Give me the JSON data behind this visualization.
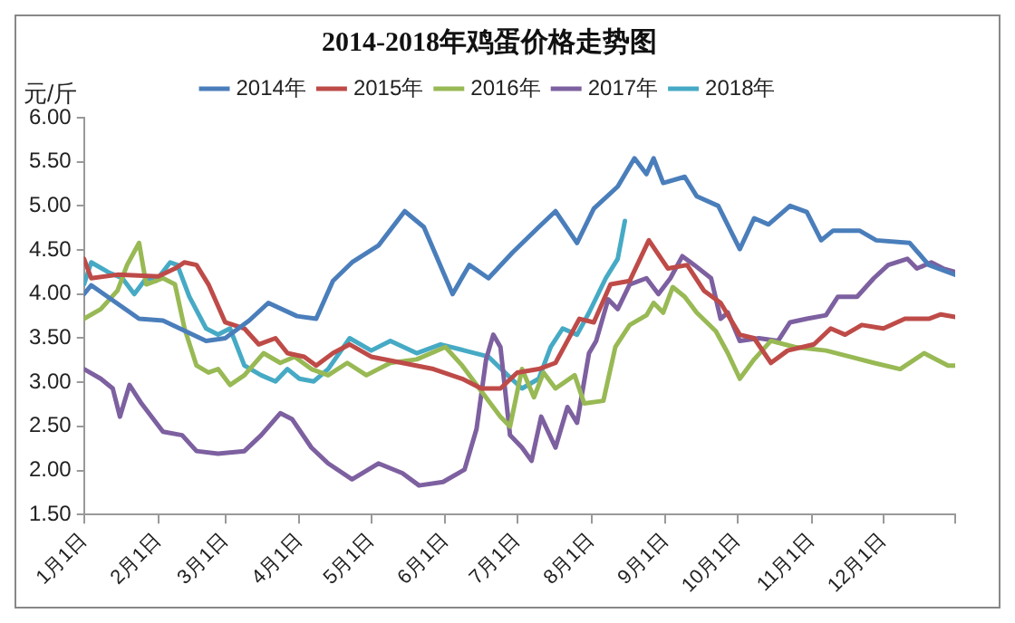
{
  "chart_data": {
    "type": "line",
    "title": "2014-2018年鸡蛋价格走势图",
    "ylabel": "元/斤",
    "xlim": [
      "--01-01",
      "--12-31"
    ],
    "xticks": [
      {
        "value": "--01-01",
        "label": "1月1日"
      },
      {
        "value": "--02-01",
        "label": "2月1日"
      },
      {
        "value": "--03-01",
        "label": "3月1日"
      },
      {
        "value": "--04-01",
        "label": "4月1日"
      },
      {
        "value": "--05-01",
        "label": "5月1日"
      },
      {
        "value": "--06-01",
        "label": "6月1日"
      },
      {
        "value": "--07-01",
        "label": "7月1日"
      },
      {
        "value": "--08-01",
        "label": "8月1日"
      },
      {
        "value": "--09-01",
        "label": "9月1日"
      },
      {
        "value": "--10-01",
        "label": "10月1日"
      },
      {
        "value": "--11-01",
        "label": "11月1日"
      },
      {
        "value": "--12-01",
        "label": "12月1日"
      },
      {
        "value": "--12-31",
        "label": null
      }
    ],
    "ylim": [
      1.5,
      6
    ],
    "yticks": [
      {
        "value": 1.5,
        "label": "1.50"
      },
      {
        "value": 2,
        "label": "2.00"
      },
      {
        "value": 2.5,
        "label": "2.50"
      },
      {
        "value": 3,
        "label": "3.00"
      },
      {
        "value": 3.5,
        "label": "3.50"
      },
      {
        "value": 4,
        "label": "4.00"
      },
      {
        "value": 4.5,
        "label": "4.50"
      },
      {
        "value": 5,
        "label": "5.00"
      },
      {
        "value": 5.5,
        "label": "5.50"
      },
      {
        "value": 6,
        "label": "6.00"
      }
    ],
    "grid": false,
    "legend": "top",
    "marker": "none",
    "line_style": "solid",
    "series": [
      {
        "name": "2014年",
        "color": "#4a7ebb",
        "x": [
          "--01-01",
          "--01-04",
          "--01-24",
          "--02-03",
          "--02-21",
          "--03-01",
          "--03-11",
          "--03-19",
          "--03-31",
          "--04-08",
          "--04-15",
          "--04-23",
          "--05-04",
          "--05-15",
          "--05-23",
          "--06-04",
          "--06-11",
          "--06-19",
          "--06-29",
          "--07-10",
          "--07-17",
          "--07-26",
          "--08-02",
          "--08-12",
          "--08-19",
          "--08-24",
          "--08-27",
          "--08-31",
          "--09-09",
          "--09-14",
          "--09-23",
          "--10-02",
          "--10-08",
          "--10-14",
          "--10-23",
          "--10-30",
          "--11-05",
          "--11-10",
          "--11-21",
          "--11-28",
          "--12-12",
          "--12-20",
          "--12-31"
        ],
        "values": [
          4.0,
          4.1,
          3.72,
          3.7,
          3.47,
          3.5,
          3.7,
          3.9,
          3.75,
          3.72,
          4.15,
          4.36,
          4.55,
          4.94,
          4.76,
          4.0,
          4.33,
          4.18,
          4.47,
          4.76,
          4.94,
          4.58,
          4.97,
          5.22,
          5.54,
          5.36,
          5.54,
          5.26,
          5.33,
          5.11,
          5.0,
          4.51,
          4.86,
          4.79,
          5.0,
          4.93,
          4.61,
          4.72,
          4.72,
          4.61,
          4.58,
          4.33,
          4.22
        ]
      },
      {
        "name": "2015年",
        "color": "#be4b48",
        "x": [
          "--01-01",
          "--01-04",
          "--01-15",
          "--02-01",
          "--02-08",
          "--02-12",
          "--02-17",
          "--02-22",
          "--03-01",
          "--03-09",
          "--03-15",
          "--03-22",
          "--03-27",
          "--04-03",
          "--04-08",
          "--04-15",
          "--04-22",
          "--05-01",
          "--05-14",
          "--05-27",
          "--06-08",
          "--06-16",
          "--06-24",
          "--07-01",
          "--07-10",
          "--07-17",
          "--07-22",
          "--07-27",
          "--08-02",
          "--08-09",
          "--08-17",
          "--08-25",
          "--09-02",
          "--09-10",
          "--09-17",
          "--09-24",
          "--10-02",
          "--10-08",
          "--10-15",
          "--10-22",
          "--11-02",
          "--11-09",
          "--11-15",
          "--11-22",
          "--12-01",
          "--12-10",
          "--12-20",
          "--12-25",
          "--12-31"
        ],
        "values": [
          4.4,
          4.18,
          4.22,
          4.2,
          4.29,
          4.36,
          4.33,
          4.11,
          3.68,
          3.61,
          3.43,
          3.5,
          3.33,
          3.29,
          3.19,
          3.33,
          3.43,
          3.29,
          3.22,
          3.15,
          3.04,
          2.93,
          2.93,
          3.11,
          3.15,
          3.22,
          3.47,
          3.72,
          3.68,
          4.11,
          4.15,
          4.61,
          4.29,
          4.33,
          4.04,
          3.9,
          3.54,
          3.5,
          3.22,
          3.36,
          3.43,
          3.61,
          3.54,
          3.65,
          3.61,
          3.72,
          3.72,
          3.77,
          3.74
        ]
      },
      {
        "name": "2016年",
        "color": "#98b954",
        "x": [
          "--01-01",
          "--01-08",
          "--01-15",
          "--01-19",
          "--01-24",
          "--01-27",
          "--02-03",
          "--02-08",
          "--02-12",
          "--02-17",
          "--02-22",
          "--02-26",
          "--03-03",
          "--03-09",
          "--03-17",
          "--03-24",
          "--03-30",
          "--04-06",
          "--04-13",
          "--04-21",
          "--04-29",
          "--05-09",
          "--05-20",
          "--06-01",
          "--06-08",
          "--06-16",
          "--06-24",
          "--06-28",
          "--07-03",
          "--07-08",
          "--07-12",
          "--07-17",
          "--07-25",
          "--07-29",
          "--08-06",
          "--08-11",
          "--08-17",
          "--08-24",
          "--08-27",
          "--08-31",
          "--09-04",
          "--09-09",
          "--09-14",
          "--09-22",
          "--09-27",
          "--10-02",
          "--10-08",
          "--10-15",
          "--10-25",
          "--11-07",
          "--11-17",
          "--11-27",
          "--12-08",
          "--12-18",
          "--12-28",
          "--12-31"
        ],
        "values": [
          3.72,
          3.83,
          4.04,
          4.33,
          4.58,
          4.11,
          4.18,
          4.11,
          3.61,
          3.19,
          3.11,
          3.15,
          2.97,
          3.08,
          3.33,
          3.22,
          3.29,
          3.15,
          3.08,
          3.22,
          3.08,
          3.22,
          3.26,
          3.4,
          3.19,
          2.9,
          2.61,
          2.5,
          3.15,
          2.83,
          3.11,
          2.93,
          3.08,
          2.76,
          2.79,
          3.4,
          3.65,
          3.76,
          3.9,
          3.79,
          4.08,
          3.97,
          3.79,
          3.58,
          3.33,
          3.04,
          3.26,
          3.47,
          3.4,
          3.36,
          3.29,
          3.22,
          3.15,
          3.33,
          3.19,
          3.19
        ]
      },
      {
        "name": "2017年",
        "color": "#7d60a0",
        "x": [
          "--01-01",
          "--01-08",
          "--01-13",
          "--01-16",
          "--01-20",
          "--01-25",
          "--02-03",
          "--02-11",
          "--02-17",
          "--02-26",
          "--03-09",
          "--03-16",
          "--03-24",
          "--03-29",
          "--04-06",
          "--04-13",
          "--04-23",
          "--05-04",
          "--05-14",
          "--05-21",
          "--05-31",
          "--06-09",
          "--06-14",
          "--06-18",
          "--06-21",
          "--06-24",
          "--06-28",
          "--07-03",
          "--07-07",
          "--07-11",
          "--07-17",
          "--07-22",
          "--07-26",
          "--07-31",
          "--08-03",
          "--08-08",
          "--08-12",
          "--08-17",
          "--08-24",
          "--08-29",
          "--09-03",
          "--09-08",
          "--09-13",
          "--09-20",
          "--09-24",
          "--09-27",
          "--10-02",
          "--10-10",
          "--10-18",
          "--10-23",
          "--10-30",
          "--11-07",
          "--11-12",
          "--11-20",
          "--11-27",
          "--12-03",
          "--12-11",
          "--12-15",
          "--12-21",
          "--12-26",
          "--12-31"
        ],
        "values": [
          3.15,
          3.04,
          2.93,
          2.61,
          2.97,
          2.76,
          2.44,
          2.4,
          2.22,
          2.19,
          2.22,
          2.4,
          2.65,
          2.58,
          2.26,
          2.08,
          1.9,
          2.08,
          1.97,
          1.83,
          1.87,
          2.01,
          2.47,
          3.26,
          3.54,
          3.4,
          2.4,
          2.26,
          2.11,
          2.61,
          2.26,
          2.72,
          2.54,
          3.33,
          3.47,
          3.94,
          3.83,
          4.11,
          4.18,
          4.0,
          4.18,
          4.43,
          4.33,
          4.18,
          3.72,
          3.79,
          3.47,
          3.5,
          3.47,
          3.68,
          3.72,
          3.76,
          3.97,
          3.97,
          4.18,
          4.33,
          4.4,
          4.29,
          4.36,
          4.29,
          4.25
        ]
      },
      {
        "name": "2018年",
        "color": "#46aac5",
        "x": [
          "--01-01",
          "--01-04",
          "--01-11",
          "--01-17",
          "--01-22",
          "--01-27",
          "--01-31",
          "--02-06",
          "--02-09",
          "--02-14",
          "--02-21",
          "--02-26",
          "--03-03",
          "--03-09",
          "--03-16",
          "--03-22",
          "--03-27",
          "--04-01",
          "--04-07",
          "--04-13",
          "--04-22",
          "--05-01",
          "--05-09",
          "--05-20",
          "--05-30",
          "--06-09",
          "--06-19",
          "--06-27",
          "--07-03",
          "--07-10",
          "--07-15",
          "--07-20",
          "--07-26",
          "--07-31",
          "--08-07",
          "--08-12",
          "--08-15"
        ],
        "values": [
          4.11,
          4.36,
          4.25,
          4.18,
          4.0,
          4.18,
          4.15,
          4.36,
          4.33,
          3.97,
          3.61,
          3.54,
          3.61,
          3.19,
          3.08,
          3.01,
          3.15,
          3.04,
          3.01,
          3.15,
          3.5,
          3.36,
          3.47,
          3.33,
          3.43,
          3.36,
          3.29,
          3.08,
          2.93,
          3.04,
          3.4,
          3.61,
          3.54,
          3.79,
          4.18,
          4.4,
          4.83
        ]
      }
    ]
  }
}
